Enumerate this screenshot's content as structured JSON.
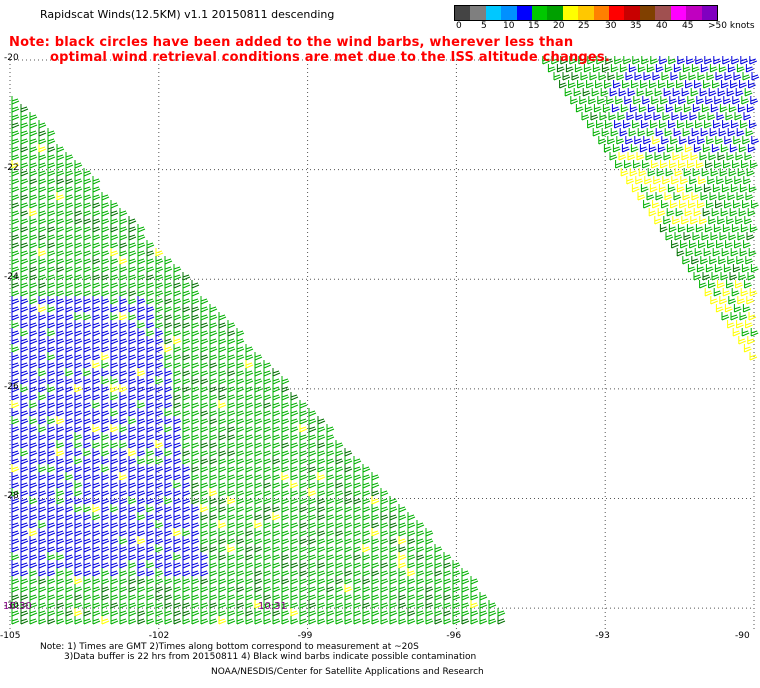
{
  "title": "Rapidscat Winds(12.5KM) v1.1 20150811 descending",
  "note_line1": "Note: black circles have been added to the wind barbs, wherever less than",
  "note_line2": "optimal wind retrieval conditions are met due to the ISS altitude changes.",
  "legend": {
    "ticks": [
      "0",
      "5",
      "10",
      "15",
      "20",
      "25",
      "30",
      "35",
      "40",
      "45",
      ">50"
    ],
    "unit": "knots",
    "colors": [
      "#444444",
      "#7f7f7f",
      "#00c8ff",
      "#0090ff",
      "#0000ff",
      "#00c800",
      "#00a000",
      "#ffff00",
      "#ffc800",
      "#ff8000",
      "#ff0000",
      "#c80000",
      "#804000",
      "#a05050",
      "#ff00ff",
      "#c000c0",
      "#8000c0"
    ]
  },
  "axes": {
    "lat_labels": [
      "-20",
      "-22",
      "-24",
      "-26",
      "-28",
      "-30"
    ],
    "lon_labels": [
      "-105",
      "-102",
      "-99",
      "-96",
      "-93",
      "-90"
    ]
  },
  "time_labels": [
    "10:30",
    "10:31"
  ],
  "footer": {
    "line1": "Note: 1) Times are GMT 2)Times along bottom correspond to measurement at ~20S",
    "line2": "3)Data buffer is 22 hrs from 20150811 4) Black wind barbs indicate possible contamination",
    "line3": "NOAA/NESDIS/Center for Satellite Applications and Research"
  },
  "barb_colors": {
    "green": "#00b000",
    "dark_green": "#007000",
    "blue": "#0000e0",
    "yellow": "#ffff00"
  }
}
